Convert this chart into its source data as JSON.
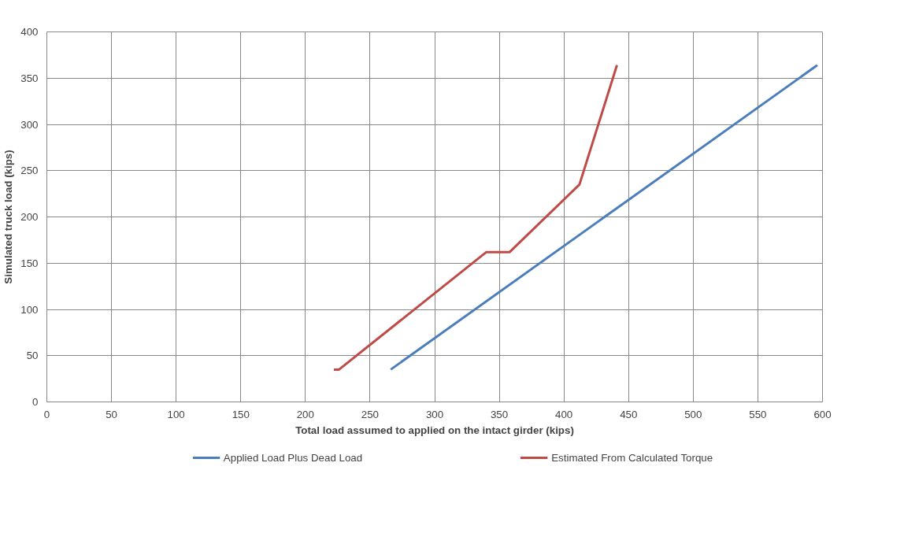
{
  "chart_data": {
    "type": "line",
    "xlabel": "Total load assumed to applied on the intact girder (kips)",
    "ylabel": "Simulated truck load (kips)",
    "xlim": [
      0,
      600
    ],
    "xticks": [
      0,
      50,
      100,
      150,
      200,
      250,
      300,
      350,
      400,
      450,
      500,
      550,
      600
    ],
    "ylim": [
      0,
      400
    ],
    "yticks": [
      0,
      50,
      100,
      150,
      200,
      250,
      300,
      350,
      400
    ],
    "grid": true,
    "legend": "bottom",
    "marker": "none",
    "line_style": "solid",
    "series": [
      {
        "name": "Applied Load Plus Dead Load",
        "color": "#4a7ebb",
        "x": [
          266,
          596
        ],
        "values": [
          35,
          364
        ]
      },
      {
        "name": "Estimated From Calculated Torque",
        "color": "#be4b48",
        "x": [
          222,
          226,
          340,
          358,
          412,
          441
        ],
        "values": [
          35,
          35,
          162,
          162,
          235,
          364
        ]
      }
    ]
  }
}
